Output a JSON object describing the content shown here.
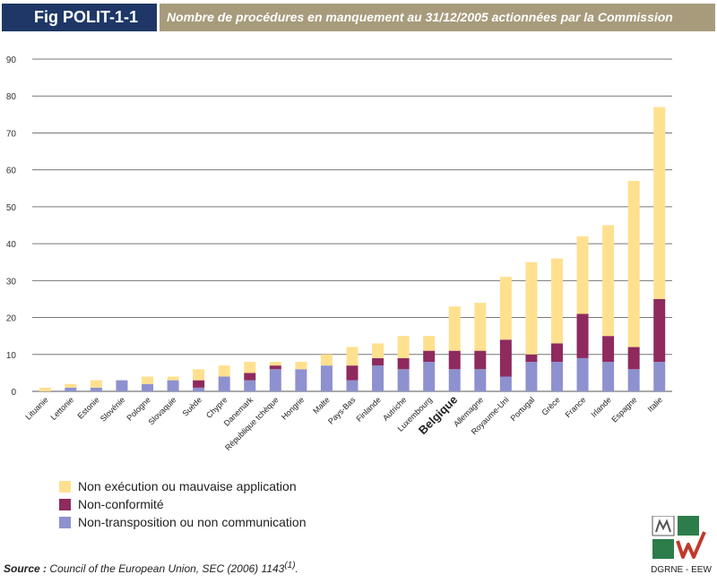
{
  "header": {
    "fig_label": "Fig POLIT-1-1",
    "title": "Nombre de procédures en manquement au 31/12/2005 actionnées par la Commission"
  },
  "chart_data": {
    "type": "bar",
    "stacked": true,
    "title": "Nombre de procédures en manquement au 31/12/2005 actionnées par la Commission",
    "xlabel": "",
    "ylabel": "",
    "ylim": [
      0,
      90
    ],
    "yticks": [
      0,
      10,
      20,
      30,
      40,
      50,
      60,
      70,
      80,
      90
    ],
    "grid": true,
    "highlight_category": "Belgique",
    "categories": [
      "Lituanie",
      "Lettonie",
      "Estonie",
      "Slovénie",
      "Pologne",
      "Slovaquie",
      "Suède",
      "Chypre",
      "Danemark",
      "République tchèque",
      "Hongrie",
      "Malte",
      "Pays-Bas",
      "Finlande",
      "Autriche",
      "Luxembourg",
      "Belgique",
      "Allemagne",
      "Royaume-Uni",
      "Portugal",
      "Grèce",
      "France",
      "Irlande",
      "Espagne",
      "Italie"
    ],
    "series": [
      {
        "name": "Non-transposition ou non communication",
        "color": "#8e91cf",
        "values": [
          0,
          1,
          1,
          3,
          2,
          3,
          1,
          4,
          3,
          6,
          6,
          7,
          3,
          7,
          6,
          8,
          6,
          6,
          4,
          8,
          8,
          9,
          8,
          6,
          8
        ]
      },
      {
        "name": "Non-conformité",
        "color": "#8e2a5e",
        "values": [
          0,
          0,
          0,
          0,
          0,
          0,
          2,
          0,
          2,
          1,
          0,
          0,
          4,
          2,
          3,
          3,
          5,
          5,
          10,
          2,
          5,
          12,
          7,
          6,
          17
        ]
      },
      {
        "name": "Non exécution ou mauvaise application",
        "color": "#ffe08f",
        "values": [
          1,
          1,
          2,
          0,
          2,
          1,
          3,
          3,
          3,
          1,
          2,
          3,
          5,
          4,
          6,
          4,
          12,
          13,
          17,
          25,
          23,
          21,
          30,
          45,
          52
        ]
      }
    ],
    "legend_order": [
      "Non exécution ou mauvaise application",
      "Non-conformité",
      "Non-transposition ou non communication"
    ],
    "legend_position": "bottom-left"
  },
  "legend": [
    {
      "label": "Non exécution ou mauvaise application",
      "color": "#ffe08f"
    },
    {
      "label": "Non-conformité",
      "color": "#8e2a5e"
    },
    {
      "label": "Non-transposition ou non communication",
      "color": "#8e91cf"
    }
  ],
  "source": {
    "prefix": "Source :",
    "text": "Council of the European Union, SEC (2006) 1143",
    "sup": "(1)",
    "suffix": "."
  },
  "logo": {
    "text": "DGRNE - EEW",
    "color": "#2c7d4a"
  }
}
